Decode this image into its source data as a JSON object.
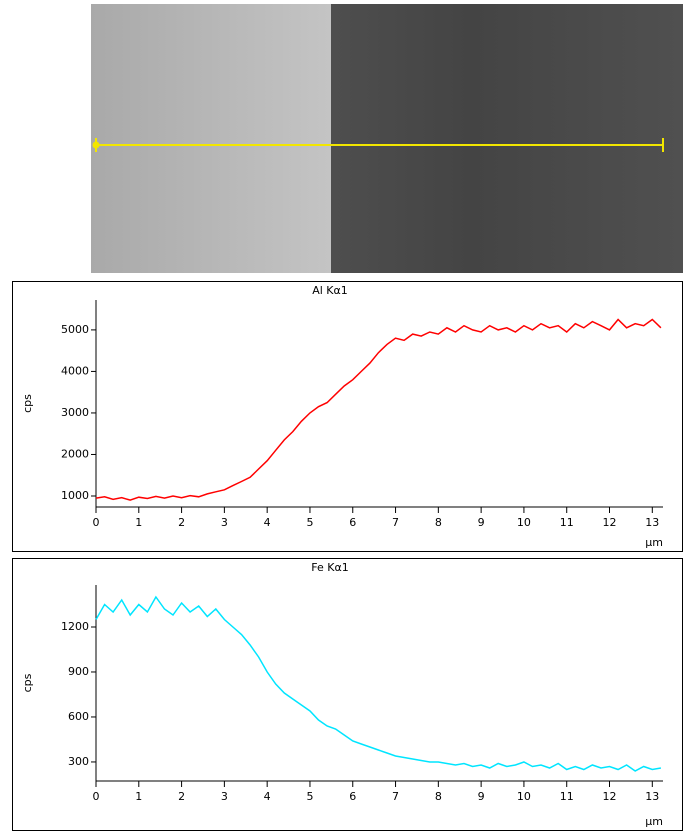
{
  "chart_data": [
    {
      "type": "line",
      "title": "Al Kα1",
      "xlabel": "µm",
      "ylabel": "cps",
      "x": [
        0,
        0.2,
        0.4,
        0.6,
        0.8,
        1.0,
        1.2,
        1.4,
        1.6,
        1.8,
        2.0,
        2.2,
        2.4,
        2.6,
        2.8,
        3.0,
        3.2,
        3.4,
        3.6,
        3.8,
        4.0,
        4.2,
        4.4,
        4.6,
        4.8,
        5.0,
        5.2,
        5.4,
        5.6,
        5.8,
        6.0,
        6.2,
        6.4,
        6.6,
        6.8,
        7.0,
        7.2,
        7.4,
        7.6,
        7.8,
        8.0,
        8.2,
        8.4,
        8.6,
        8.8,
        9.0,
        9.2,
        9.4,
        9.6,
        9.8,
        10.0,
        10.2,
        10.4,
        10.6,
        10.8,
        11.0,
        11.2,
        11.4,
        11.6,
        11.8,
        12.0,
        12.2,
        12.4,
        12.6,
        12.8,
        13.0,
        13.2
      ],
      "series": [
        {
          "name": "Al Kα1",
          "color": "#ff0000",
          "values": [
            950,
            980,
            920,
            960,
            900,
            970,
            940,
            990,
            950,
            1000,
            960,
            1010,
            980,
            1050,
            1100,
            1150,
            1250,
            1350,
            1450,
            1650,
            1850,
            2100,
            2350,
            2550,
            2800,
            3000,
            3150,
            3250,
            3450,
            3650,
            3800,
            4000,
            4200,
            4450,
            4650,
            4800,
            4750,
            4900,
            4850,
            4950,
            4900,
            5050,
            4950,
            5100,
            5000,
            4950,
            5100,
            5000,
            5050,
            4950,
            5100,
            5000,
            5150,
            5050,
            5100,
            4950,
            5150,
            5050,
            5200,
            5100,
            5000,
            5250,
            5050,
            5150,
            5100,
            5250,
            5050
          ]
        }
      ],
      "xlim": [
        0,
        13.25
      ],
      "xticks": [
        0,
        1,
        2,
        3,
        4,
        5,
        6,
        7,
        8,
        9,
        10,
        11,
        12,
        13
      ],
      "ylim": [
        735,
        5720
      ],
      "yticks": [
        1000,
        2000,
        3000,
        4000,
        5000
      ]
    },
    {
      "type": "line",
      "title": "Fe Kα1",
      "xlabel": "µm",
      "ylabel": "cps",
      "x": [
        0,
        0.2,
        0.4,
        0.6,
        0.8,
        1.0,
        1.2,
        1.4,
        1.6,
        1.8,
        2.0,
        2.2,
        2.4,
        2.6,
        2.8,
        3.0,
        3.2,
        3.4,
        3.6,
        3.8,
        4.0,
        4.2,
        4.4,
        4.6,
        4.8,
        5.0,
        5.2,
        5.4,
        5.6,
        5.8,
        6.0,
        6.2,
        6.4,
        6.6,
        6.8,
        7.0,
        7.2,
        7.4,
        7.6,
        7.8,
        8.0,
        8.2,
        8.4,
        8.6,
        8.8,
        9.0,
        9.2,
        9.4,
        9.6,
        9.8,
        10.0,
        10.2,
        10.4,
        10.6,
        10.8,
        11.0,
        11.2,
        11.4,
        11.6,
        11.8,
        12.0,
        12.2,
        12.4,
        12.6,
        12.8,
        13.0,
        13.2
      ],
      "series": [
        {
          "name": "Fe Kα1",
          "color": "#00e5ff",
          "values": [
            1250,
            1350,
            1300,
            1380,
            1280,
            1350,
            1300,
            1400,
            1320,
            1280,
            1360,
            1300,
            1340,
            1270,
            1320,
            1250,
            1200,
            1150,
            1080,
            1000,
            900,
            820,
            760,
            720,
            680,
            640,
            580,
            540,
            520,
            480,
            440,
            420,
            400,
            380,
            360,
            340,
            330,
            320,
            310,
            300,
            300,
            290,
            280,
            290,
            270,
            280,
            260,
            290,
            270,
            280,
            300,
            270,
            280,
            260,
            290,
            250,
            270,
            250,
            280,
            260,
            270,
            250,
            280,
            240,
            270,
            250,
            260
          ]
        }
      ],
      "xlim": [
        0,
        13.25
      ],
      "xticks": [
        0,
        1,
        2,
        3,
        4,
        5,
        6,
        7,
        8,
        9,
        10,
        11,
        12,
        13
      ],
      "ylim": [
        173,
        1480
      ],
      "yticks": [
        300,
        600,
        900,
        1200
      ]
    }
  ]
}
